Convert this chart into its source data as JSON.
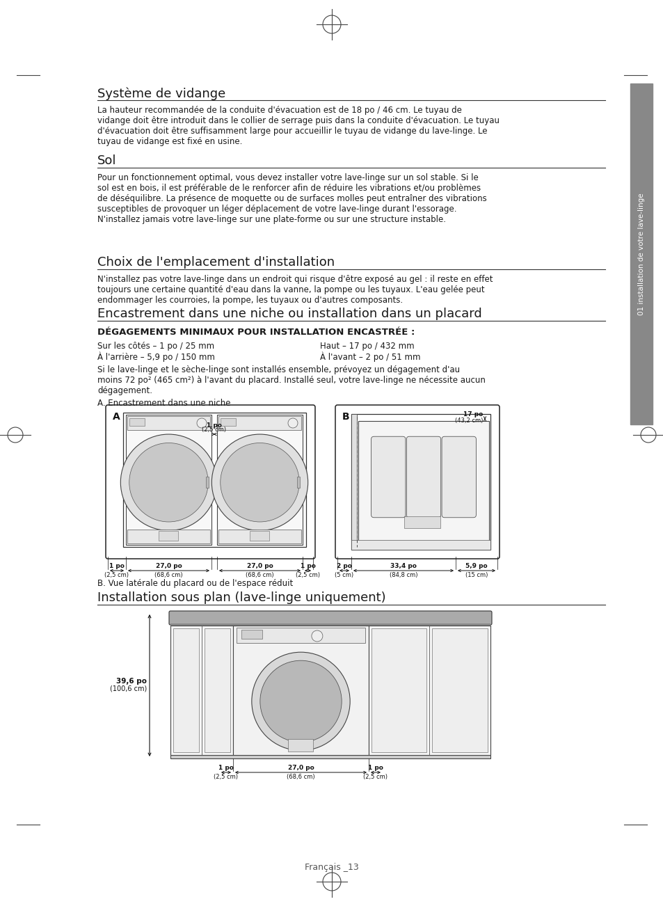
{
  "page_bg": "#ffffff",
  "sidebar_color": "#888888",
  "sidebar_text": "01 installation de votre lave-linge",
  "title1": "Système de vidange",
  "title1_body": "La hauteur recommandée de la conduite d'évacuation est de 18 po / 46 cm. Le tuyau de\nvidange doit être introduit dans le collier de serrage puis dans la conduite d'évacuation. Le tuyau\nd'évacuation doit être suffisamment large pour accueillir le tuyau de vidange du lave-linge. Le\ntuyau de vidange est fixé en usine.",
  "title2": "Sol",
  "title2_body": "Pour un fonctionnement optimal, vous devez installer votre lave-linge sur un sol stable. Si le\nsol est en bois, il est préférable de le renforcer afin de réduire les vibrations et/ou problèmes\nde déséquilibre. La présence de moquette ou de surfaces molles peut entraîner des vibrations\nsusceptibles de provoquer un léger déplacement de votre lave-linge durant l'essorage.\nN'installez jamais votre lave-linge sur une plate-forme ou sur une structure instable.",
  "title3": "Choix de l'emplacement d'installation",
  "title3_body": "N'installez pas votre lave-linge dans un endroit qui risque d'être exposé au gel : il reste en effet\ntoujours une certaine quantité d'eau dans la vanne, la pompe ou les tuyaux. L'eau gelée peut\nendommager les courroies, la pompe, les tuyaux ou d'autres composants.",
  "title4": "Encastrement dans une niche ou installation dans un placard",
  "section_bold": "DÉGAGEMENTS MINIMAUX POUR INSTALLATION ENCASTRÉE :",
  "dim1": "Sur les côtés – 1 po / 25 mm",
  "dim2": "Haut – 17 po / 432 mm",
  "dim3": "À l'arrière – 5,9 po / 150 mm",
  "dim4": "À l'avant – 2 po / 51 mm",
  "body_note": "Si le lave-linge et le sèche-linge sont installés ensemble, prévoyez un dégagement d'au\nmoins 72 po² (465 cm²) à l'avant du placard. Installé seul, votre lave-linge ne nécessite aucun\ndégagement.",
  "label_a": "A. Encastrement dans une niche",
  "label_b": "B. Vue latérale du placard ou de l'espace réduit",
  "title5": "Installation sous plan (lave-linge uniquement)",
  "footer": "Français _13",
  "text_color": "#1a1a1a",
  "dim_color": "#111111",
  "line_color": "#333333"
}
